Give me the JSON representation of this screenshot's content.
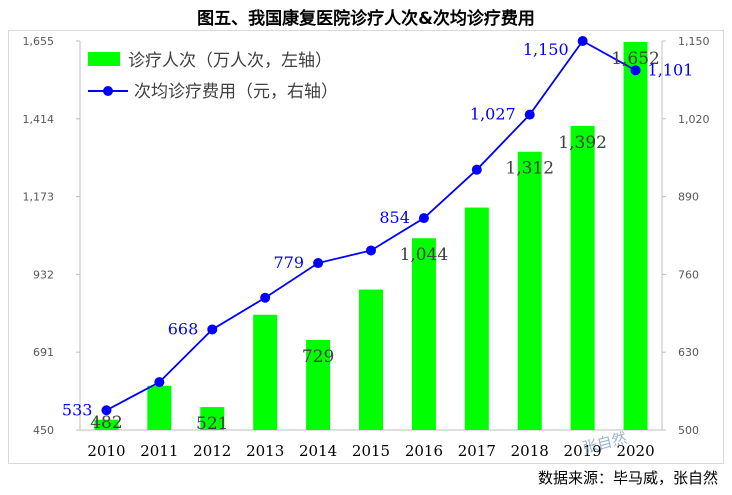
{
  "title": "图五、我国康复医院诊疗人次&次均诊疗费用",
  "source": "数据来源：毕马威，张自然",
  "watermark": "张自然",
  "colors": {
    "bar": "#00ff00",
    "line": "#0000ff",
    "axis_text": "#595959",
    "bar_label": "#404040"
  },
  "chart_data": {
    "type": "bar+line",
    "categories": [
      "2010",
      "2011",
      "2012",
      "2013",
      "2014",
      "2015",
      "2016",
      "2017",
      "2018",
      "2019",
      "2020"
    ],
    "series": [
      {
        "name": "诊疗人次（万人次，左轴）",
        "axis": "left",
        "type": "bar",
        "values": [
          482,
          587,
          521,
          807,
          729,
          885,
          1044,
          1139,
          1312,
          1392,
          1652
        ],
        "labels": [
          "482",
          "",
          "521",
          "",
          "729",
          "",
          "1,044",
          "",
          "1,312",
          "1,392",
          "1,652"
        ]
      },
      {
        "name": "次均诊疗费用（元，右轴）",
        "axis": "right",
        "type": "line",
        "values": [
          533,
          580,
          668,
          721,
          779,
          800,
          854,
          935,
          1027,
          1150,
          1101
        ],
        "labels": [
          "533",
          "",
          "668",
          "",
          "779",
          "",
          "854",
          "",
          "1,027",
          "1,150",
          "1,101"
        ]
      }
    ],
    "y_left": {
      "min": 450,
      "max": 1655,
      "ticks": [
        "1,655",
        "1,414",
        "1,173",
        "932",
        "691",
        "450"
      ]
    },
    "y_right": {
      "min": 500,
      "max": 1150,
      "ticks": [
        "1,150",
        "1,020",
        "890",
        "760",
        "630",
        "500"
      ]
    },
    "legend_position": "top-left"
  }
}
